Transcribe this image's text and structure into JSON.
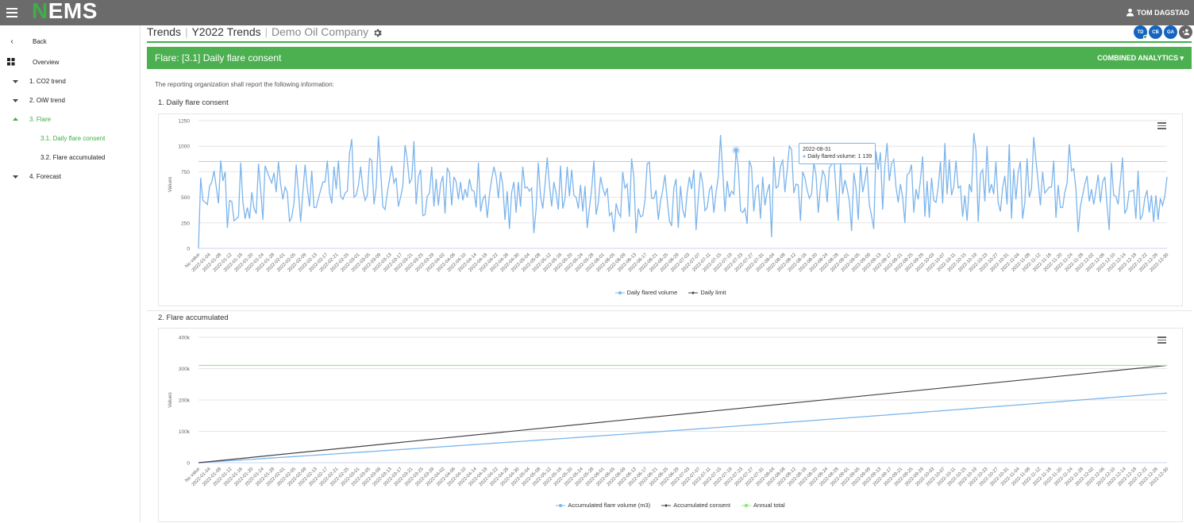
{
  "topbar": {
    "logo_first": "N",
    "logo_rest": "EMS",
    "user": "TOM DAGSTAD"
  },
  "sidebar": {
    "back": "Back",
    "overview": "Overview",
    "items": [
      {
        "label": "1. CO2 trend"
      },
      {
        "label": "2. OiW trend"
      },
      {
        "label": "3. Flare"
      },
      {
        "label": "3.1. Daily flare consent"
      },
      {
        "label": "3.2. Flare accumulated"
      },
      {
        "label": "4. Forecast"
      }
    ]
  },
  "breadcrumb": {
    "part1": "Trends",
    "part2": "Y2022 Trends",
    "part3": "Demo Oil Company"
  },
  "avatars": [
    "TD",
    "CB",
    "GA"
  ],
  "panel": {
    "title": "Flare: [3.1] Daily flare consent",
    "combined": "COMBINED ANALYTICS"
  },
  "intro": "The reporting organization shall report the following information:",
  "sections": {
    "s1": "1. Daily flare consent",
    "s2": "2. Flare accumulated"
  },
  "colors": {
    "green": "#4caf50",
    "blue": "#7cb5ec",
    "black": "#434348",
    "lightgreen": "#90ed7d"
  },
  "tooltip": {
    "date": "2022-08-31",
    "label": "Daily flared volume: 1 139"
  },
  "chart_data": [
    {
      "type": "line",
      "ylabel": "Values",
      "ylim": [
        0,
        1250
      ],
      "yticks": [
        "0",
        "250",
        "500",
        "750",
        "1000",
        "1250"
      ],
      "x_first": "No value",
      "x_start": "2022-01-04",
      "x_end": "2022-12-30",
      "x_step_days": 4,
      "series": [
        {
          "name": "Daily flared volume",
          "color": "#7cb5ec",
          "values": [
            0,
            690,
            470,
            450,
            430,
            610,
            650,
            760,
            600,
            440,
            860,
            660,
            750,
            200,
            470,
            460,
            270,
            290,
            310,
            840,
            450,
            290,
            400,
            290,
            550,
            390,
            340,
            830,
            580,
            280,
            810,
            750,
            690,
            640,
            740,
            550,
            850,
            630,
            480,
            600,
            550,
            260,
            310,
            440,
            820,
            560,
            260,
            550,
            820,
            590,
            410,
            760,
            400,
            400,
            490,
            570,
            650,
            650,
            860,
            540,
            440,
            800,
            580,
            860,
            510,
            480,
            540,
            560,
            930,
            1070,
            500,
            520,
            620,
            800,
            580,
            470,
            520,
            880,
            860,
            430,
            600,
            1100,
            770,
            410,
            380,
            540,
            670,
            810,
            640,
            690,
            410,
            500,
            610,
            1010,
            870,
            640,
            680,
            1050,
            430,
            700,
            770,
            320,
            330,
            510,
            540,
            800,
            410,
            680,
            420,
            630,
            710,
            340,
            790,
            740,
            420,
            700,
            650,
            480,
            650,
            470,
            580,
            500,
            680,
            570,
            560,
            400,
            840,
            360,
            480,
            520,
            300,
            530,
            680,
            800,
            700,
            490,
            750,
            620,
            280,
            560,
            190,
            550,
            650,
            350,
            650,
            410,
            800,
            590,
            600,
            560,
            590,
            150,
            390,
            840,
            510,
            390,
            620,
            890,
            620,
            410,
            650,
            540,
            380,
            810,
            390,
            490,
            800,
            510,
            770,
            520,
            500,
            390,
            620,
            360,
            610,
            200,
            400,
            580,
            860,
            330,
            450,
            700,
            590,
            520,
            590,
            320,
            350,
            160,
            440,
            350,
            310,
            750,
            590,
            630,
            310,
            880,
            700,
            150,
            390,
            310,
            320,
            470,
            830,
            840,
            490,
            490,
            570,
            280,
            460,
            570,
            720,
            480,
            270,
            220,
            590,
            680,
            200,
            610,
            380,
            300,
            550,
            700,
            580,
            770,
            180,
            500,
            750,
            630,
            370,
            400,
            570,
            610,
            350,
            550,
            700,
            1110,
            750,
            360,
            660,
            500,
            560,
            530,
            960,
            790,
            370,
            350,
            390,
            240,
            860,
            790,
            360,
            590,
            620,
            290,
            700,
            420,
            550,
            630,
            110,
            900,
            590,
            610,
            800,
            870,
            550,
            760,
            1000,
            970,
            540,
            630,
            620,
            270,
            750,
            690,
            570,
            490,
            530,
            840,
            720,
            350,
            600,
            760,
            710,
            450,
            790,
            820,
            890,
            570,
            270,
            830,
            530,
            670,
            580,
            460,
            170,
            740,
            590,
            280,
            820,
            550,
            660,
            800,
            430,
            320,
            190,
            950,
            770,
            940,
            380,
            810,
            1030,
            660,
            830,
            870,
            600,
            450,
            630,
            500,
            250,
            720,
            740,
            820,
            350,
            580,
            480,
            670,
            900,
            310,
            660,
            300,
            690,
            470,
            450,
            600,
            850,
            440,
            1030,
            530,
            870,
            520,
            600,
            860,
            590,
            610,
            310,
            520,
            270,
            630,
            550,
            1130,
            960,
            260,
            730,
            770,
            460,
            1000,
            540,
            630,
            530,
            850,
            450,
            360,
            590,
            710,
            430,
            1020,
            290,
            780,
            480,
            740,
            850,
            290,
            450,
            880,
            500,
            580,
            1090,
            860,
            650,
            420,
            750,
            540,
            570,
            600,
            600,
            860,
            300,
            620,
            400,
            400,
            550,
            640,
            1020,
            760,
            780,
            580,
            160,
            410,
            520,
            630,
            710,
            460,
            580,
            430,
            570,
            720,
            450,
            650,
            700,
            430,
            180,
            840,
            520,
            510,
            430,
            650,
            890,
            340,
            390,
            560,
            560,
            570,
            290,
            760,
            280,
            330,
            490,
            570,
            350,
            520,
            260,
            520,
            280,
            490,
            420,
            510,
            700
          ]
        },
        {
          "name": "Daily limit",
          "color": "#434348",
          "values": [
            850
          ]
        }
      ]
    },
    {
      "type": "line",
      "ylabel": "Values",
      "ylim": [
        0,
        400000
      ],
      "yticks": [
        "0",
        "100k",
        "200k",
        "300k",
        "400k"
      ],
      "series": [
        {
          "name": "Accumulated flare volume (m3)",
          "color": "#7cb5ec",
          "start": 0,
          "end": 222000,
          "curve": 0.88
        },
        {
          "name": "Accumulated consent",
          "color": "#434348",
          "start": 0,
          "end": 310250
        },
        {
          "name": "Annual total",
          "color": "#90ed7d",
          "constant": 310250
        }
      ]
    }
  ]
}
